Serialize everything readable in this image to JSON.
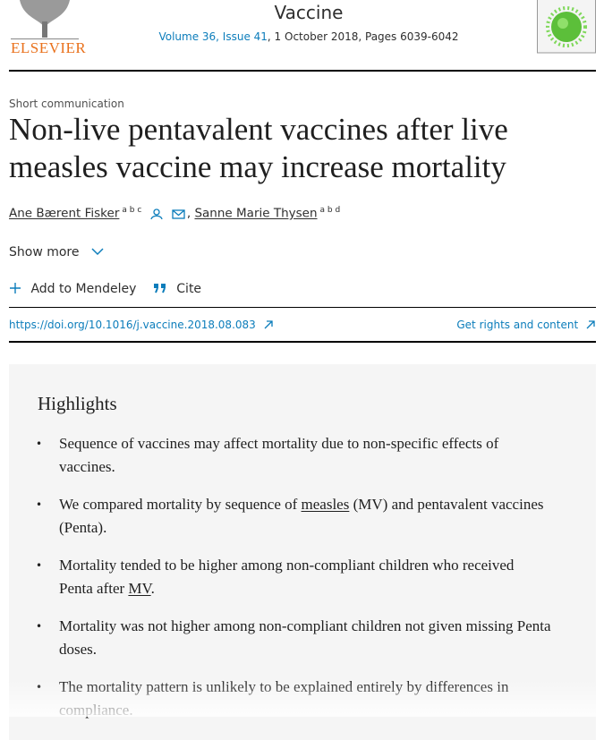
{
  "header": {
    "publisher": "ELSEVIER",
    "journal": "Vaccine",
    "volume": "Volume 36, Issue 41",
    "issue_details": ", 1 October 2018, Pages 6039-6042"
  },
  "article": {
    "type": "Short communication",
    "title": "Non-live pentavalent vaccines after live measles vaccine may increase mortality",
    "authors": [
      {
        "name": "Ane Bærent Fisker",
        "affiliations": "a b c"
      },
      {
        "name": "Sanne Marie Thysen",
        "affiliations": "a b d"
      }
    ],
    "author_separator": ",",
    "show_more": "Show more",
    "actions": [
      "Add to Mendeley",
      "Cite"
    ],
    "doi": "https://doi.org/10.1016/j.vaccine.2018.08.083",
    "rights": "Get rights and content"
  },
  "highlights": {
    "heading": "Highlights",
    "bullet": "•",
    "items": [
      [
        "Sequence of vaccines may affect mortality due to non-specific effects of vaccines."
      ],
      [
        "We compared mortality by sequence of ",
        "measles",
        " (MV) and pentavalent vaccines (Penta)."
      ],
      [
        "Mortality tended to be higher among non-compliant children who received Penta after ",
        "MV",
        "."
      ],
      [
        "Mortality was not higher among non-compliant children not given missing Penta doses."
      ],
      [
        "The mortality pattern is unlikely to be explained entirely by differences in compliance."
      ]
    ]
  }
}
